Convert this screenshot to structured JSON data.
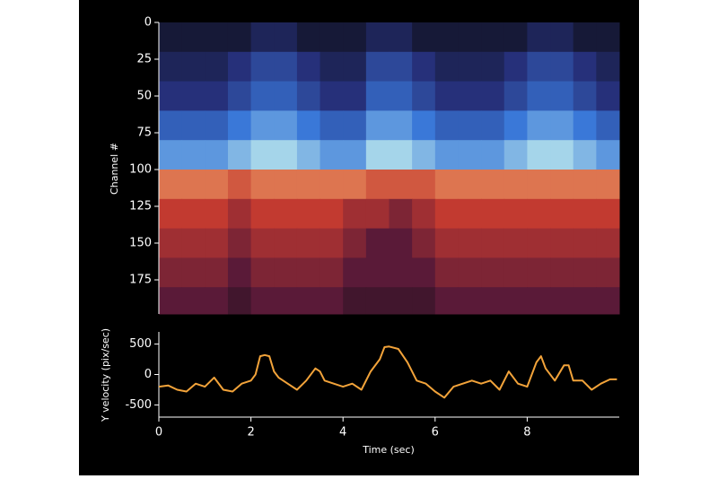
{
  "chart_data": [
    {
      "type": "heatmap",
      "ylabel": "Channel #",
      "x": [
        0,
        0.5,
        1,
        1.5,
        2,
        2.5,
        3,
        3.5,
        4,
        4.5,
        5,
        5.5,
        6,
        6.5,
        7,
        7.5,
        8,
        8.5,
        9,
        9.5,
        10
      ],
      "y": [
        0,
        20,
        40,
        60,
        80,
        100,
        120,
        140,
        160,
        180,
        200
      ],
      "z": [
        [
          -0.1,
          -0.1,
          -0.1,
          -0.1,
          -0.2,
          -0.2,
          -0.1,
          -0.1,
          -0.1,
          -0.2,
          -0.2,
          -0.1,
          -0.1,
          -0.1,
          -0.1,
          -0.1,
          -0.2,
          -0.2,
          -0.1,
          -0.1
        ],
        [
          -0.2,
          -0.2,
          -0.2,
          -0.3,
          -0.4,
          -0.4,
          -0.3,
          -0.2,
          -0.2,
          -0.4,
          -0.4,
          -0.3,
          -0.2,
          -0.2,
          -0.2,
          -0.3,
          -0.4,
          -0.4,
          -0.3,
          -0.2
        ],
        [
          -0.3,
          -0.3,
          -0.3,
          -0.4,
          -0.5,
          -0.5,
          -0.4,
          -0.3,
          -0.3,
          -0.5,
          -0.5,
          -0.4,
          -0.3,
          -0.3,
          -0.3,
          -0.4,
          -0.5,
          -0.5,
          -0.4,
          -0.3
        ],
        [
          -0.5,
          -0.5,
          -0.5,
          -0.6,
          -0.7,
          -0.7,
          -0.6,
          -0.5,
          -0.5,
          -0.7,
          -0.7,
          -0.6,
          -0.5,
          -0.5,
          -0.5,
          -0.6,
          -0.7,
          -0.7,
          -0.6,
          -0.5
        ],
        [
          -0.7,
          -0.7,
          -0.7,
          -0.8,
          -0.9,
          -0.9,
          -0.8,
          -0.7,
          -0.7,
          -0.9,
          -0.9,
          -0.8,
          -0.7,
          -0.7,
          -0.7,
          -0.8,
          -0.9,
          -0.9,
          -0.8,
          -0.7
        ],
        [
          0.8,
          0.8,
          0.8,
          0.7,
          0.8,
          0.8,
          0.8,
          0.8,
          0.8,
          0.7,
          0.7,
          0.7,
          0.8,
          0.8,
          0.8,
          0.8,
          0.8,
          0.8,
          0.8,
          0.8
        ],
        [
          0.6,
          0.6,
          0.6,
          0.5,
          0.6,
          0.6,
          0.6,
          0.6,
          0.5,
          0.5,
          0.4,
          0.5,
          0.6,
          0.6,
          0.6,
          0.6,
          0.6,
          0.6,
          0.6,
          0.6
        ],
        [
          0.5,
          0.5,
          0.5,
          0.4,
          0.5,
          0.5,
          0.5,
          0.5,
          0.4,
          0.3,
          0.3,
          0.4,
          0.5,
          0.5,
          0.5,
          0.5,
          0.5,
          0.5,
          0.5,
          0.5
        ],
        [
          0.4,
          0.4,
          0.4,
          0.3,
          0.4,
          0.4,
          0.4,
          0.4,
          0.3,
          0.3,
          0.3,
          0.3,
          0.4,
          0.4,
          0.4,
          0.4,
          0.4,
          0.4,
          0.4,
          0.4
        ],
        [
          0.3,
          0.3,
          0.3,
          0.2,
          0.3,
          0.3,
          0.3,
          0.3,
          0.2,
          0.2,
          0.2,
          0.2,
          0.3,
          0.3,
          0.3,
          0.3,
          0.3,
          0.3,
          0.3,
          0.3
        ]
      ],
      "colorscale": [
        [
          -1,
          "#c8f4f0"
        ],
        [
          -0.6,
          "#3a78d8"
        ],
        [
          -0.3,
          "#26307a"
        ],
        [
          0,
          "#0e0e16"
        ],
        [
          0.3,
          "#5a1a38"
        ],
        [
          0.6,
          "#c23a30"
        ],
        [
          1,
          "#f8b070"
        ]
      ],
      "xlim": [
        0,
        10
      ],
      "ylim": [
        200,
        0
      ],
      "yticks": [
        0,
        25,
        50,
        75,
        100,
        125,
        150,
        175
      ]
    },
    {
      "type": "line",
      "xlabel": "Time (sec)",
      "ylabel": "Y velocity (pix/sec)",
      "color": "#f2a33a",
      "x": [
        0,
        0.2,
        0.4,
        0.6,
        0.8,
        1.0,
        1.2,
        1.4,
        1.6,
        1.8,
        2.0,
        2.1,
        2.2,
        2.3,
        2.4,
        2.5,
        2.6,
        2.8,
        3.0,
        3.2,
        3.4,
        3.5,
        3.6,
        3.8,
        4.0,
        4.2,
        4.4,
        4.6,
        4.8,
        4.9,
        5.0,
        5.2,
        5.4,
        5.6,
        5.8,
        6.0,
        6.2,
        6.4,
        6.6,
        6.8,
        7.0,
        7.2,
        7.4,
        7.6,
        7.8,
        8.0,
        8.2,
        8.3,
        8.4,
        8.6,
        8.8,
        8.9,
        9.0,
        9.2,
        9.4,
        9.6,
        9.8,
        9.95
      ],
      "values": [
        -200,
        -180,
        -250,
        -280,
        -150,
        -200,
        -50,
        -250,
        -280,
        -150,
        -100,
        0,
        300,
        320,
        300,
        50,
        -50,
        -150,
        -250,
        -100,
        100,
        50,
        -100,
        -150,
        -200,
        -150,
        -250,
        50,
        250,
        450,
        460,
        420,
        200,
        -100,
        -150,
        -280,
        -380,
        -200,
        -150,
        -100,
        -150,
        -100,
        -250,
        50,
        -150,
        -200,
        200,
        300,
        100,
        -100,
        150,
        150,
        -100,
        -100,
        -250,
        -150,
        -80,
        -80
      ],
      "xlim": [
        0,
        10
      ],
      "ylim": [
        -700,
        700
      ],
      "xticks": [
        0,
        2,
        4,
        6,
        8
      ],
      "yticks": [
        500,
        0,
        -500
      ]
    }
  ]
}
